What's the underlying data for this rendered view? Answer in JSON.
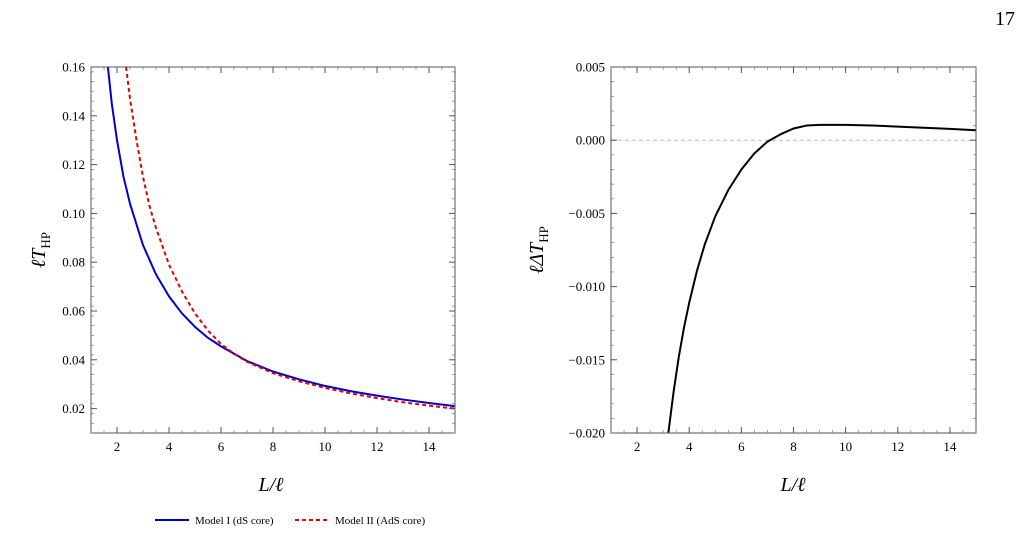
{
  "page": {
    "number": "17"
  },
  "chart_data": [
    {
      "type": "line",
      "title": "",
      "xlabel": "L/ℓ",
      "ylabel": "ℓT_HP",
      "xlim": [
        1,
        15
      ],
      "ylim": [
        0.01,
        0.16
      ],
      "x_ticks": [
        2,
        4,
        6,
        8,
        10,
        12,
        14
      ],
      "y_ticks": [
        0.02,
        0.04,
        0.06,
        0.08,
        0.1,
        0.12,
        0.14,
        0.16
      ],
      "y_tick_labels": [
        "0.02",
        "0.04",
        "0.06",
        "0.08",
        "0.10",
        "0.12",
        "0.14",
        "0.16"
      ],
      "grid": false,
      "legend": "bottom",
      "series": [
        {
          "name": "Model I (dS core)",
          "color": "#0000cc",
          "dash": "solid",
          "x": [
            1.65,
            1.8,
            2.0,
            2.25,
            2.5,
            3.0,
            3.5,
            4.0,
            4.5,
            5.0,
            5.5,
            6.0,
            7.0,
            8.0,
            9.0,
            10.0,
            11.0,
            12.0,
            13.0,
            14.0,
            15.0
          ],
          "y": [
            0.16,
            0.145,
            0.13,
            0.115,
            0.104,
            0.087,
            0.075,
            0.066,
            0.059,
            0.0535,
            0.049,
            0.0455,
            0.0395,
            0.0352,
            0.032,
            0.0293,
            0.0271,
            0.0253,
            0.0237,
            0.0223,
            0.021
          ]
        },
        {
          "name": "Model II (AdS core)",
          "color": "#e00000",
          "dash": "dashed",
          "x": [
            2.35,
            2.5,
            2.75,
            3.0,
            3.25,
            3.5,
            4.0,
            4.5,
            5.0,
            5.5,
            6.0,
            6.5,
            7.0,
            8.0,
            9.0,
            10.0,
            11.0,
            12.0,
            13.0,
            14.0,
            15.0
          ],
          "y": [
            0.16,
            0.147,
            0.13,
            0.115,
            0.103,
            0.094,
            0.079,
            0.068,
            0.059,
            0.052,
            0.0465,
            0.0425,
            0.0392,
            0.0345,
            0.0312,
            0.0285,
            0.0262,
            0.0243,
            0.0226,
            0.0212,
            0.02
          ]
        }
      ]
    },
    {
      "type": "line",
      "title": "",
      "xlabel": "L/ℓ",
      "ylabel": "ℓΔT_HP",
      "xlim": [
        1,
        15
      ],
      "ylim": [
        -0.02,
        0.005
      ],
      "x_ticks": [
        2,
        4,
        6,
        8,
        10,
        12,
        14
      ],
      "y_ticks": [
        -0.02,
        -0.015,
        -0.01,
        -0.005,
        0.0,
        0.005
      ],
      "y_tick_labels": [
        "-0.020",
        "-0.015",
        "-0.010",
        "-0.005",
        "0.000",
        "0.005"
      ],
      "grid": false,
      "reference_line": {
        "y": 0.0,
        "style": "dashed"
      },
      "series": [
        {
          "color": "#000000",
          "dash": "solid",
          "x": [
            3.2,
            3.4,
            3.6,
            3.8,
            4.0,
            4.3,
            4.6,
            5.0,
            5.5,
            6.0,
            6.5,
            7.0,
            7.5,
            8.0,
            8.5,
            9.0,
            10.0,
            11.0,
            12.0,
            13.0,
            14.0,
            15.0
          ],
          "y": [
            -0.02,
            -0.0172,
            -0.0148,
            -0.0128,
            -0.0111,
            -0.0089,
            -0.0071,
            -0.0052,
            -0.0034,
            -0.002,
            -0.0009,
            -0.0001,
            0.0004,
            0.0008,
            0.001,
            0.00105,
            0.00105,
            0.001,
            0.00093,
            0.00085,
            0.00077,
            0.00068
          ]
        }
      ]
    }
  ]
}
